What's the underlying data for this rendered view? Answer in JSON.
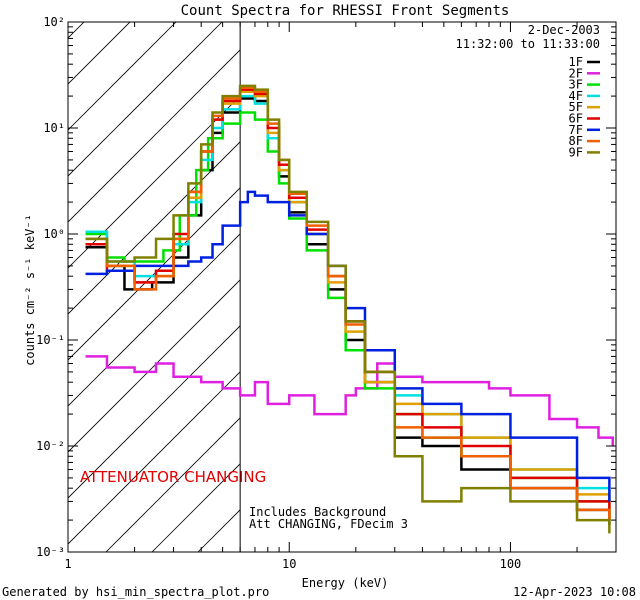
{
  "chart_data": {
    "type": "line",
    "title": "Count Spectra for RHESSI Front Segments",
    "xlabel": "Energy (keV)",
    "ylabel": "counts cm⁻² s⁻¹ keV⁻¹",
    "xscale": "log",
    "yscale": "log",
    "xlim": [
      1,
      300
    ],
    "ylim": [
      0.001,
      100
    ],
    "x_ticks": [
      "1",
      "10",
      "100"
    ],
    "y_ticks": [
      "10⁻³",
      "10⁻²",
      "10⁻¹",
      "10⁰",
      "10¹",
      "10²"
    ],
    "legend_placement": "top-right",
    "date": "2-Dec-2003",
    "time_range": "11:32:00 to 11:33:00",
    "shaded_region_below_kev": 6,
    "attenuator_note": "ATTENUATOR CHANGING",
    "annotation_line1": "Includes Background",
    "annotation_line2": "Att CHANGING, FDecim 3",
    "footer_left": "Generated by hsi_min_spectra_plot.pro",
    "footer_right": "12-Apr-2023 10:08",
    "series": [
      {
        "name": "1F",
        "color": "#000000",
        "points": [
          [
            1.2,
            0.75
          ],
          [
            1.5,
            0.5
          ],
          [
            1.8,
            0.3
          ],
          [
            2.4,
            0.35
          ],
          [
            3,
            0.6
          ],
          [
            3.5,
            1.5
          ],
          [
            4,
            4
          ],
          [
            4.5,
            9
          ],
          [
            5,
            14
          ],
          [
            6,
            19
          ],
          [
            7,
            18
          ],
          [
            8,
            8
          ],
          [
            9,
            3.5
          ],
          [
            10,
            1.6
          ],
          [
            12,
            0.8
          ],
          [
            15,
            0.3
          ],
          [
            18,
            0.1
          ],
          [
            22,
            0.04
          ],
          [
            30,
            0.012
          ],
          [
            40,
            0.01
          ],
          [
            60,
            0.006
          ],
          [
            100,
            0.004
          ],
          [
            200,
            0.0025
          ],
          [
            280,
            0.0018
          ]
        ]
      },
      {
        "name": "2F",
        "color": "#e020e0",
        "points": [
          [
            1.2,
            0.07
          ],
          [
            1.5,
            0.055
          ],
          [
            2,
            0.05
          ],
          [
            2.5,
            0.06
          ],
          [
            3,
            0.045
          ],
          [
            4,
            0.04
          ],
          [
            5,
            0.035
          ],
          [
            6,
            0.03
          ],
          [
            7,
            0.04
          ],
          [
            8,
            0.025
          ],
          [
            10,
            0.03
          ],
          [
            13,
            0.02
          ],
          [
            15,
            0.02
          ],
          [
            18,
            0.03
          ],
          [
            20,
            0.035
          ],
          [
            25,
            0.06
          ],
          [
            30,
            0.045
          ],
          [
            40,
            0.04
          ],
          [
            60,
            0.04
          ],
          [
            80,
            0.035
          ],
          [
            100,
            0.03
          ],
          [
            150,
            0.018
          ],
          [
            200,
            0.015
          ],
          [
            250,
            0.012
          ],
          [
            290,
            0.01
          ]
        ]
      },
      {
        "name": "3F",
        "color": "#00e000",
        "points": [
          [
            1.2,
            1.0
          ],
          [
            1.5,
            0.6
          ],
          [
            1.8,
            0.55
          ],
          [
            2.2,
            0.55
          ],
          [
            2.7,
            0.7
          ],
          [
            3.2,
            1.5
          ],
          [
            3.8,
            4
          ],
          [
            4.3,
            8
          ],
          [
            5,
            11
          ],
          [
            6,
            14
          ],
          [
            7,
            12
          ],
          [
            8,
            6
          ],
          [
            9,
            3
          ],
          [
            10,
            1.4
          ],
          [
            12,
            0.7
          ],
          [
            15,
            0.25
          ],
          [
            18,
            0.08
          ],
          [
            22,
            0.035
          ],
          [
            30,
            0.02
          ],
          [
            40,
            0.012
          ],
          [
            60,
            0.008
          ],
          [
            100,
            0.005
          ],
          [
            200,
            0.003
          ],
          [
            280,
            0.002
          ]
        ]
      },
      {
        "name": "4F",
        "color": "#00e0e0",
        "points": [
          [
            1.2,
            1.05
          ],
          [
            1.5,
            0.55
          ],
          [
            2,
            0.4
          ],
          [
            2.5,
            0.45
          ],
          [
            3,
            0.8
          ],
          [
            3.5,
            2
          ],
          [
            4,
            5
          ],
          [
            4.5,
            10
          ],
          [
            5,
            15
          ],
          [
            6,
            20
          ],
          [
            7,
            17
          ],
          [
            8,
            8
          ],
          [
            9,
            4
          ],
          [
            10,
            2
          ],
          [
            12,
            1
          ],
          [
            15,
            0.4
          ],
          [
            18,
            0.15
          ],
          [
            22,
            0.05
          ],
          [
            30,
            0.03
          ],
          [
            40,
            0.02
          ],
          [
            60,
            0.012
          ],
          [
            100,
            0.006
          ],
          [
            200,
            0.004
          ],
          [
            280,
            0.003
          ]
        ]
      },
      {
        "name": "5F",
        "color": "#e0a000",
        "points": [
          [
            1.2,
            0.8
          ],
          [
            1.5,
            0.5
          ],
          [
            2,
            0.35
          ],
          [
            2.5,
            0.4
          ],
          [
            3,
            0.9
          ],
          [
            3.5,
            2.2
          ],
          [
            4,
            6
          ],
          [
            4.5,
            12
          ],
          [
            5,
            17
          ],
          [
            6,
            22
          ],
          [
            7,
            20
          ],
          [
            8,
            9
          ],
          [
            9,
            4
          ],
          [
            10,
            2
          ],
          [
            12,
            1
          ],
          [
            15,
            0.35
          ],
          [
            18,
            0.12
          ],
          [
            22,
            0.04
          ],
          [
            30,
            0.025
          ],
          [
            40,
            0.02
          ],
          [
            60,
            0.012
          ],
          [
            100,
            0.006
          ],
          [
            200,
            0.0035
          ],
          [
            280,
            0.0025
          ]
        ]
      },
      {
        "name": "6F",
        "color": "#e00000",
        "points": [
          [
            1.2,
            0.8
          ],
          [
            1.5,
            0.45
          ],
          [
            2,
            0.35
          ],
          [
            2.5,
            0.45
          ],
          [
            3,
            1
          ],
          [
            3.5,
            2.5
          ],
          [
            4,
            6
          ],
          [
            4.5,
            12
          ],
          [
            5,
            18
          ],
          [
            6,
            23
          ],
          [
            7,
            21
          ],
          [
            8,
            10
          ],
          [
            9,
            4.5
          ],
          [
            10,
            2.2
          ],
          [
            12,
            1.1
          ],
          [
            15,
            0.4
          ],
          [
            18,
            0.15
          ],
          [
            22,
            0.05
          ],
          [
            30,
            0.02
          ],
          [
            40,
            0.015
          ],
          [
            60,
            0.01
          ],
          [
            100,
            0.005
          ],
          [
            200,
            0.003
          ],
          [
            280,
            0.002
          ]
        ]
      },
      {
        "name": "7F",
        "color": "#0020e0",
        "points": [
          [
            1.2,
            0.42
          ],
          [
            1.5,
            0.45
          ],
          [
            2,
            0.5
          ],
          [
            2.5,
            0.5
          ],
          [
            3,
            0.5
          ],
          [
            3.5,
            0.55
          ],
          [
            4,
            0.6
          ],
          [
            4.5,
            0.8
          ],
          [
            5,
            1.2
          ],
          [
            6,
            2
          ],
          [
            6.5,
            2.5
          ],
          [
            7,
            2.3
          ],
          [
            8,
            2
          ],
          [
            10,
            1.5
          ],
          [
            12,
            1
          ],
          [
            15,
            0.5
          ],
          [
            18,
            0.2
          ],
          [
            22,
            0.08
          ],
          [
            30,
            0.035
          ],
          [
            40,
            0.025
          ],
          [
            60,
            0.02
          ],
          [
            100,
            0.012
          ],
          [
            200,
            0.005
          ],
          [
            280,
            0.003
          ]
        ]
      },
      {
        "name": "8F",
        "color": "#f06000",
        "points": [
          [
            1.2,
            0.9
          ],
          [
            1.5,
            0.5
          ],
          [
            2,
            0.3
          ],
          [
            2.5,
            0.4
          ],
          [
            3,
            0.9
          ],
          [
            3.5,
            2.5
          ],
          [
            4,
            6
          ],
          [
            4.5,
            13
          ],
          [
            5,
            19
          ],
          [
            6,
            24
          ],
          [
            7,
            22
          ],
          [
            8,
            11
          ],
          [
            9,
            5
          ],
          [
            10,
            2.4
          ],
          [
            12,
            1.2
          ],
          [
            15,
            0.4
          ],
          [
            18,
            0.14
          ],
          [
            22,
            0.05
          ],
          [
            30,
            0.015
          ],
          [
            40,
            0.012
          ],
          [
            60,
            0.008
          ],
          [
            100,
            0.004
          ],
          [
            200,
            0.0025
          ],
          [
            280,
            0.002
          ]
        ]
      },
      {
        "name": "9F",
        "color": "#808000",
        "points": [
          [
            1.2,
            0.9
          ],
          [
            1.5,
            0.55
          ],
          [
            2,
            0.6
          ],
          [
            2.5,
            0.9
          ],
          [
            3,
            1.5
          ],
          [
            3.5,
            3
          ],
          [
            4,
            7
          ],
          [
            4.5,
            14
          ],
          [
            5,
            20
          ],
          [
            6,
            25
          ],
          [
            7,
            23
          ],
          [
            8,
            12
          ],
          [
            9,
            5
          ],
          [
            10,
            2.5
          ],
          [
            12,
            1.3
          ],
          [
            15,
            0.5
          ],
          [
            18,
            0.15
          ],
          [
            22,
            0.05
          ],
          [
            30,
            0.008
          ],
          [
            40,
            0.003
          ],
          [
            60,
            0.004
          ],
          [
            100,
            0.003
          ],
          [
            200,
            0.002
          ],
          [
            280,
            0.0015
          ]
        ]
      }
    ]
  }
}
